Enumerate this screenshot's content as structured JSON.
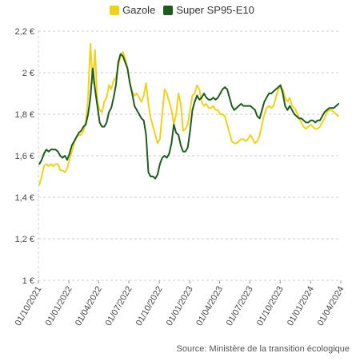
{
  "chart_data": {
    "type": "line",
    "title": "",
    "xlabel": "",
    "ylabel": "",
    "ylim": [
      1,
      2.2
    ],
    "y_ticks": [
      1,
      1.2,
      1.4,
      1.6,
      1.8,
      2,
      2.2
    ],
    "y_tick_labels": [
      "1 €",
      "1,2 €",
      "1,4 €",
      "1,6 €",
      "1,8 €",
      "2 €",
      "2,2 €"
    ],
    "x_range": [
      "2021-10-01",
      "2024-04-01"
    ],
    "x_ticks": [
      "2021-10-01",
      "2022-01-01",
      "2022-04-01",
      "2022-07-01",
      "2022-10-01",
      "2023-01-01",
      "2023-04-01",
      "2023-07-01",
      "2023-10-01",
      "2024-01-01",
      "2024-04-01"
    ],
    "x_tick_labels": [
      "01/10/2021",
      "01/01/2022",
      "01/04/2022",
      "01/07/2022",
      "01/10/2022",
      "01/01/2023",
      "01/04/2023",
      "01/07/2023",
      "01/10/2023",
      "01/01/2024",
      "01/04/2024"
    ],
    "grid": true,
    "legend_position": "top",
    "series": [
      {
        "name": "Gazole",
        "color": "#f0d21a",
        "points": [
          [
            "2021-10-04",
            1.46
          ],
          [
            "2021-10-11",
            1.5
          ],
          [
            "2021-10-18",
            1.55
          ],
          [
            "2021-10-25",
            1.56
          ],
          [
            "2021-11-01",
            1.55
          ],
          [
            "2021-11-08",
            1.56
          ],
          [
            "2021-11-15",
            1.55
          ],
          [
            "2021-11-22",
            1.56
          ],
          [
            "2021-11-29",
            1.56
          ],
          [
            "2021-12-06",
            1.53
          ],
          [
            "2021-12-13",
            1.53
          ],
          [
            "2021-12-20",
            1.52
          ],
          [
            "2021-12-27",
            1.54
          ],
          [
            "2022-01-03",
            1.58
          ],
          [
            "2022-01-10",
            1.62
          ],
          [
            "2022-01-17",
            1.66
          ],
          [
            "2022-01-24",
            1.69
          ],
          [
            "2022-01-31",
            1.7
          ],
          [
            "2022-02-07",
            1.7
          ],
          [
            "2022-02-14",
            1.72
          ],
          [
            "2022-02-21",
            1.76
          ],
          [
            "2022-02-28",
            1.88
          ],
          [
            "2022-03-07",
            2.14
          ],
          [
            "2022-03-14",
            1.95
          ],
          [
            "2022-03-21",
            2.11
          ],
          [
            "2022-03-28",
            1.86
          ],
          [
            "2022-04-04",
            1.82
          ],
          [
            "2022-04-11",
            1.81
          ],
          [
            "2022-04-18",
            1.86
          ],
          [
            "2022-04-25",
            1.88
          ],
          [
            "2022-05-02",
            1.94
          ],
          [
            "2022-05-09",
            1.92
          ],
          [
            "2022-05-16",
            1.96
          ],
          [
            "2022-05-23",
            1.98
          ],
          [
            "2022-05-30",
            2.03
          ],
          [
            "2022-06-06",
            2.08
          ],
          [
            "2022-06-13",
            2.1
          ],
          [
            "2022-06-20",
            2.07
          ],
          [
            "2022-06-27",
            2.02
          ],
          [
            "2022-07-04",
            1.95
          ],
          [
            "2022-07-11",
            1.91
          ],
          [
            "2022-07-18",
            1.89
          ],
          [
            "2022-07-25",
            1.9
          ],
          [
            "2022-08-01",
            1.88
          ],
          [
            "2022-08-08",
            1.86
          ],
          [
            "2022-08-15",
            1.89
          ],
          [
            "2022-08-22",
            1.95
          ],
          [
            "2022-08-29",
            1.85
          ],
          [
            "2022-09-05",
            1.78
          ],
          [
            "2022-09-12",
            1.74
          ],
          [
            "2022-09-19",
            1.7
          ],
          [
            "2022-09-26",
            1.66
          ],
          [
            "2022-10-03",
            1.68
          ],
          [
            "2022-10-10",
            1.8
          ],
          [
            "2022-10-17",
            1.92
          ],
          [
            "2022-10-24",
            1.9
          ],
          [
            "2022-10-31",
            1.86
          ],
          [
            "2022-11-07",
            1.82
          ],
          [
            "2022-11-14",
            1.75
          ],
          [
            "2022-11-21",
            1.8
          ],
          [
            "2022-11-28",
            1.9
          ],
          [
            "2022-12-05",
            1.85
          ],
          [
            "2022-12-12",
            1.72
          ],
          [
            "2022-12-19",
            1.73
          ],
          [
            "2022-12-26",
            1.75
          ],
          [
            "2023-01-02",
            1.82
          ],
          [
            "2023-01-09",
            1.89
          ],
          [
            "2023-01-16",
            1.9
          ],
          [
            "2023-01-23",
            1.94
          ],
          [
            "2023-01-30",
            1.92
          ],
          [
            "2023-02-06",
            1.86
          ],
          [
            "2023-02-13",
            1.84
          ],
          [
            "2023-02-20",
            1.85
          ],
          [
            "2023-02-27",
            1.83
          ],
          [
            "2023-03-06",
            1.83
          ],
          [
            "2023-03-13",
            1.84
          ],
          [
            "2023-03-20",
            1.82
          ],
          [
            "2023-03-27",
            1.82
          ],
          [
            "2023-04-03",
            1.8
          ],
          [
            "2023-04-10",
            1.8
          ],
          [
            "2023-04-17",
            1.79
          ],
          [
            "2023-04-24",
            1.75
          ],
          [
            "2023-05-01",
            1.71
          ],
          [
            "2023-05-08",
            1.67
          ],
          [
            "2023-05-15",
            1.66
          ],
          [
            "2023-05-22",
            1.66
          ],
          [
            "2023-05-29",
            1.67
          ],
          [
            "2023-06-05",
            1.68
          ],
          [
            "2023-06-12",
            1.68
          ],
          [
            "2023-06-19",
            1.67
          ],
          [
            "2023-06-26",
            1.68
          ],
          [
            "2023-07-03",
            1.7
          ],
          [
            "2023-07-10",
            1.68
          ],
          [
            "2023-07-17",
            1.66
          ],
          [
            "2023-07-24",
            1.67
          ],
          [
            "2023-07-31",
            1.7
          ],
          [
            "2023-08-07",
            1.75
          ],
          [
            "2023-08-14",
            1.8
          ],
          [
            "2023-08-21",
            1.83
          ],
          [
            "2023-08-28",
            1.84
          ],
          [
            "2023-09-04",
            1.83
          ],
          [
            "2023-09-11",
            1.84
          ],
          [
            "2023-09-18",
            1.88
          ],
          [
            "2023-09-25",
            1.92
          ],
          [
            "2023-10-02",
            1.93
          ],
          [
            "2023-10-09",
            1.92
          ],
          [
            "2023-10-16",
            1.88
          ],
          [
            "2023-10-23",
            1.86
          ],
          [
            "2023-10-30",
            1.88
          ],
          [
            "2023-11-06",
            1.84
          ],
          [
            "2023-11-13",
            1.83
          ],
          [
            "2023-11-20",
            1.81
          ],
          [
            "2023-11-27",
            1.78
          ],
          [
            "2023-12-04",
            1.76
          ],
          [
            "2023-12-11",
            1.74
          ],
          [
            "2023-12-18",
            1.73
          ],
          [
            "2023-12-25",
            1.74
          ],
          [
            "2024-01-01",
            1.75
          ],
          [
            "2024-01-08",
            1.74
          ],
          [
            "2024-01-15",
            1.73
          ],
          [
            "2024-01-22",
            1.73
          ],
          [
            "2024-01-29",
            1.74
          ],
          [
            "2024-02-05",
            1.76
          ],
          [
            "2024-02-12",
            1.78
          ],
          [
            "2024-02-19",
            1.81
          ],
          [
            "2024-02-26",
            1.82
          ],
          [
            "2024-03-04",
            1.82
          ],
          [
            "2024-03-11",
            1.81
          ],
          [
            "2024-03-18",
            1.8
          ],
          [
            "2024-03-25",
            1.79
          ]
        ]
      },
      {
        "name": "Super SP95-E10",
        "color": "#1e5c1e",
        "points": [
          [
            "2021-10-04",
            1.56
          ],
          [
            "2021-10-11",
            1.58
          ],
          [
            "2021-10-18",
            1.61
          ],
          [
            "2021-10-25",
            1.63
          ],
          [
            "2021-11-01",
            1.62
          ],
          [
            "2021-11-08",
            1.63
          ],
          [
            "2021-11-15",
            1.63
          ],
          [
            "2021-11-22",
            1.63
          ],
          [
            "2021-11-29",
            1.62
          ],
          [
            "2021-12-06",
            1.6
          ],
          [
            "2021-12-13",
            1.59
          ],
          [
            "2021-12-20",
            1.6
          ],
          [
            "2021-12-27",
            1.58
          ],
          [
            "2022-01-03",
            1.61
          ],
          [
            "2022-01-10",
            1.65
          ],
          [
            "2022-01-17",
            1.67
          ],
          [
            "2022-01-24",
            1.69
          ],
          [
            "2022-01-31",
            1.71
          ],
          [
            "2022-02-07",
            1.72
          ],
          [
            "2022-02-14",
            1.74
          ],
          [
            "2022-02-21",
            1.75
          ],
          [
            "2022-02-28",
            1.8
          ],
          [
            "2022-03-07",
            1.88
          ],
          [
            "2022-03-14",
            2.02
          ],
          [
            "2022-03-21",
            1.92
          ],
          [
            "2022-03-28",
            1.84
          ],
          [
            "2022-04-04",
            1.76
          ],
          [
            "2022-04-11",
            1.74
          ],
          [
            "2022-04-18",
            1.74
          ],
          [
            "2022-04-25",
            1.76
          ],
          [
            "2022-05-02",
            1.81
          ],
          [
            "2022-05-09",
            1.83
          ],
          [
            "2022-05-16",
            1.88
          ],
          [
            "2022-05-23",
            1.94
          ],
          [
            "2022-05-30",
            2.05
          ],
          [
            "2022-06-06",
            2.09
          ],
          [
            "2022-06-13",
            2.08
          ],
          [
            "2022-06-20",
            2.05
          ],
          [
            "2022-06-27",
            2.02
          ],
          [
            "2022-07-04",
            1.95
          ],
          [
            "2022-07-11",
            1.9
          ],
          [
            "2022-07-18",
            1.84
          ],
          [
            "2022-07-25",
            1.82
          ],
          [
            "2022-08-01",
            1.8
          ],
          [
            "2022-08-08",
            1.78
          ],
          [
            "2022-08-15",
            1.77
          ],
          [
            "2022-08-22",
            1.7
          ],
          [
            "2022-08-29",
            1.52
          ],
          [
            "2022-09-05",
            1.5
          ],
          [
            "2022-09-12",
            1.5
          ],
          [
            "2022-09-19",
            1.49
          ],
          [
            "2022-09-26",
            1.51
          ],
          [
            "2022-10-03",
            1.56
          ],
          [
            "2022-10-10",
            1.59
          ],
          [
            "2022-10-17",
            1.6
          ],
          [
            "2022-10-24",
            1.59
          ],
          [
            "2022-10-31",
            1.61
          ],
          [
            "2022-11-07",
            1.66
          ],
          [
            "2022-11-14",
            1.75
          ],
          [
            "2022-11-21",
            1.71
          ],
          [
            "2022-11-28",
            1.7
          ],
          [
            "2022-12-05",
            1.65
          ],
          [
            "2022-12-12",
            1.62
          ],
          [
            "2022-12-19",
            1.62
          ],
          [
            "2022-12-26",
            1.64
          ],
          [
            "2023-01-02",
            1.72
          ],
          [
            "2023-01-09",
            1.82
          ],
          [
            "2023-01-16",
            1.86
          ],
          [
            "2023-01-23",
            1.89
          ],
          [
            "2023-01-30",
            1.87
          ],
          [
            "2023-02-06",
            1.88
          ],
          [
            "2023-02-13",
            1.9
          ],
          [
            "2023-02-20",
            1.88
          ],
          [
            "2023-02-27",
            1.87
          ],
          [
            "2023-03-06",
            1.87
          ],
          [
            "2023-03-13",
            1.88
          ],
          [
            "2023-03-20",
            1.87
          ],
          [
            "2023-03-27",
            1.88
          ],
          [
            "2023-04-03",
            1.9
          ],
          [
            "2023-04-10",
            1.92
          ],
          [
            "2023-04-17",
            1.93
          ],
          [
            "2023-04-24",
            1.92
          ],
          [
            "2023-05-01",
            1.88
          ],
          [
            "2023-05-08",
            1.84
          ],
          [
            "2023-05-15",
            1.82
          ],
          [
            "2023-05-22",
            1.83
          ],
          [
            "2023-05-29",
            1.84
          ],
          [
            "2023-06-05",
            1.85
          ],
          [
            "2023-06-12",
            1.84
          ],
          [
            "2023-06-19",
            1.84
          ],
          [
            "2023-06-26",
            1.84
          ],
          [
            "2023-07-03",
            1.84
          ],
          [
            "2023-07-10",
            1.83
          ],
          [
            "2023-07-17",
            1.82
          ],
          [
            "2023-07-24",
            1.79
          ],
          [
            "2023-07-31",
            1.78
          ],
          [
            "2023-08-07",
            1.82
          ],
          [
            "2023-08-14",
            1.86
          ],
          [
            "2023-08-21",
            1.88
          ],
          [
            "2023-08-28",
            1.9
          ],
          [
            "2023-09-04",
            1.9
          ],
          [
            "2023-09-11",
            1.91
          ],
          [
            "2023-09-18",
            1.92
          ],
          [
            "2023-09-25",
            1.93
          ],
          [
            "2023-10-02",
            1.94
          ],
          [
            "2023-10-09",
            1.9
          ],
          [
            "2023-10-16",
            1.84
          ],
          [
            "2023-10-23",
            1.82
          ],
          [
            "2023-10-30",
            1.84
          ],
          [
            "2023-11-06",
            1.82
          ],
          [
            "2023-11-13",
            1.8
          ],
          [
            "2023-11-20",
            1.79
          ],
          [
            "2023-11-27",
            1.78
          ],
          [
            "2023-12-04",
            1.78
          ],
          [
            "2023-12-11",
            1.77
          ],
          [
            "2023-12-18",
            1.76
          ],
          [
            "2023-12-25",
            1.76
          ],
          [
            "2024-01-01",
            1.77
          ],
          [
            "2024-01-08",
            1.77
          ],
          [
            "2024-01-15",
            1.76
          ],
          [
            "2024-01-22",
            1.77
          ],
          [
            "2024-01-29",
            1.77
          ],
          [
            "2024-02-05",
            1.79
          ],
          [
            "2024-02-12",
            1.81
          ],
          [
            "2024-02-19",
            1.82
          ],
          [
            "2024-02-26",
            1.83
          ],
          [
            "2024-03-04",
            1.83
          ],
          [
            "2024-03-11",
            1.83
          ],
          [
            "2024-03-18",
            1.84
          ],
          [
            "2024-03-25",
            1.85
          ]
        ]
      }
    ],
    "source": "Source: Ministère de la transition écologique"
  }
}
